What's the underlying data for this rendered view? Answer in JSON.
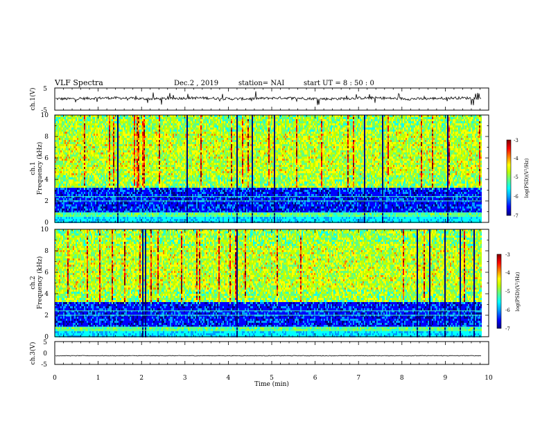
{
  "header": {
    "title": "VLF Spectra",
    "date": "Dec.2 , 2019",
    "station": "station= NAI",
    "start": "start  UT =   8  : 50 : 0"
  },
  "chart_data": [
    {
      "type": "line",
      "panel": "ch1-waveform",
      "ylabel": "ch.1(V)",
      "ylim": [
        -5,
        5
      ],
      "yticks": [
        "5",
        "-5"
      ],
      "color": "#000000",
      "baseline": 0.3,
      "amplitude_note": "noisy broadband trace"
    },
    {
      "type": "heatmap",
      "panel": "ch1-spectrogram",
      "ylabel_line1": "ch.1",
      "ylabel_line2": "Frequency (kHz)",
      "ylim": [
        0,
        10
      ],
      "yticks": [
        "10",
        "8",
        "6",
        "4",
        "2",
        "0"
      ],
      "colorbar_label": "log(PSD)(V²/Hz)",
      "colorbar_range": [
        -7,
        -3
      ],
      "colorbar_ticks": [
        "-3",
        "-4",
        "-5",
        "-6",
        "-7"
      ]
    },
    {
      "type": "heatmap",
      "panel": "ch2-spectrogram",
      "ylabel_line1": "ch.2",
      "ylabel_line2": "Frequency (kHz)",
      "ylim": [
        0,
        10
      ],
      "yticks": [
        "10",
        "8",
        "6",
        "4",
        "2",
        "0"
      ],
      "colorbar_label": "log(PSD)(V²/Hz)",
      "colorbar_range": [
        -7,
        -3
      ],
      "colorbar_ticks": [
        "-3",
        "-4",
        "-5",
        "-6",
        "-7"
      ]
    },
    {
      "type": "line",
      "panel": "ch3-waveform",
      "ylabel": "ch.3(V)",
      "ylim": [
        -5,
        5
      ],
      "yticks": [
        "5",
        "0",
        "-5"
      ],
      "color": "#000000",
      "baseline": -1.2,
      "amplitude_note": "nearly flat trace"
    }
  ],
  "xaxis": {
    "label": "Time  (min)",
    "range": [
      0,
      10
    ],
    "ticks": [
      "0",
      "1",
      "2",
      "3",
      "4",
      "5",
      "6",
      "7",
      "8",
      "9",
      "10"
    ],
    "data_end": 9.83
  },
  "colormap": [
    "#000080",
    "#0000ff",
    "#00a0ff",
    "#00ffff",
    "#60ff80",
    "#c0ff00",
    "#ffff00",
    "#ff8000",
    "#ff0000",
    "#800000"
  ]
}
